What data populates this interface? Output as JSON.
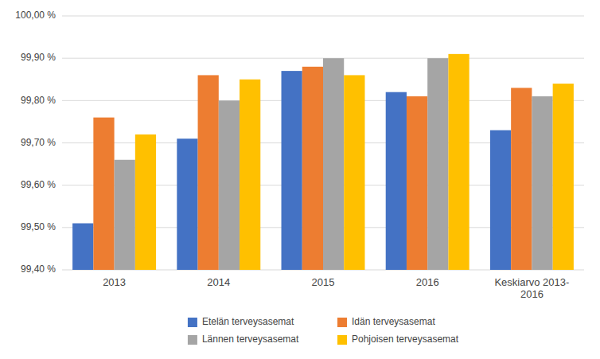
{
  "chart_data": {
    "type": "bar",
    "categories": [
      "2013",
      "2014",
      "2015",
      "2016",
      "Keskiarvo 2013-\n2016"
    ],
    "series": [
      {
        "name": "Etelän terveysasemat",
        "color": "#4472C4",
        "values": [
          99.51,
          99.71,
          99.87,
          99.82,
          99.73
        ]
      },
      {
        "name": "Idän terveysasemat",
        "color": "#ED7D31",
        "values": [
          99.76,
          99.86,
          99.88,
          99.81,
          99.83
        ]
      },
      {
        "name": "Lännen terveysasemat",
        "color": "#A5A5A5",
        "values": [
          99.66,
          99.8,
          99.9,
          99.9,
          99.81
        ]
      },
      {
        "name": "Pohjoisen terveysasemat",
        "color": "#FFC000",
        "values": [
          99.72,
          99.85,
          99.86,
          99.91,
          99.84
        ]
      }
    ],
    "ylim": [
      99.4,
      100.0
    ],
    "yticks": [
      {
        "value": 99.4,
        "label": "99,40 %"
      },
      {
        "value": 99.5,
        "label": "99,50 %"
      },
      {
        "value": 99.6,
        "label": "99,60 %"
      },
      {
        "value": 99.7,
        "label": "99,70 %"
      },
      {
        "value": 99.8,
        "label": "99,80 %"
      },
      {
        "value": 99.9,
        "label": "99,90 %"
      },
      {
        "value": 100.0,
        "label": "100,00 %"
      }
    ],
    "grid": true,
    "legend": "bottom"
  }
}
